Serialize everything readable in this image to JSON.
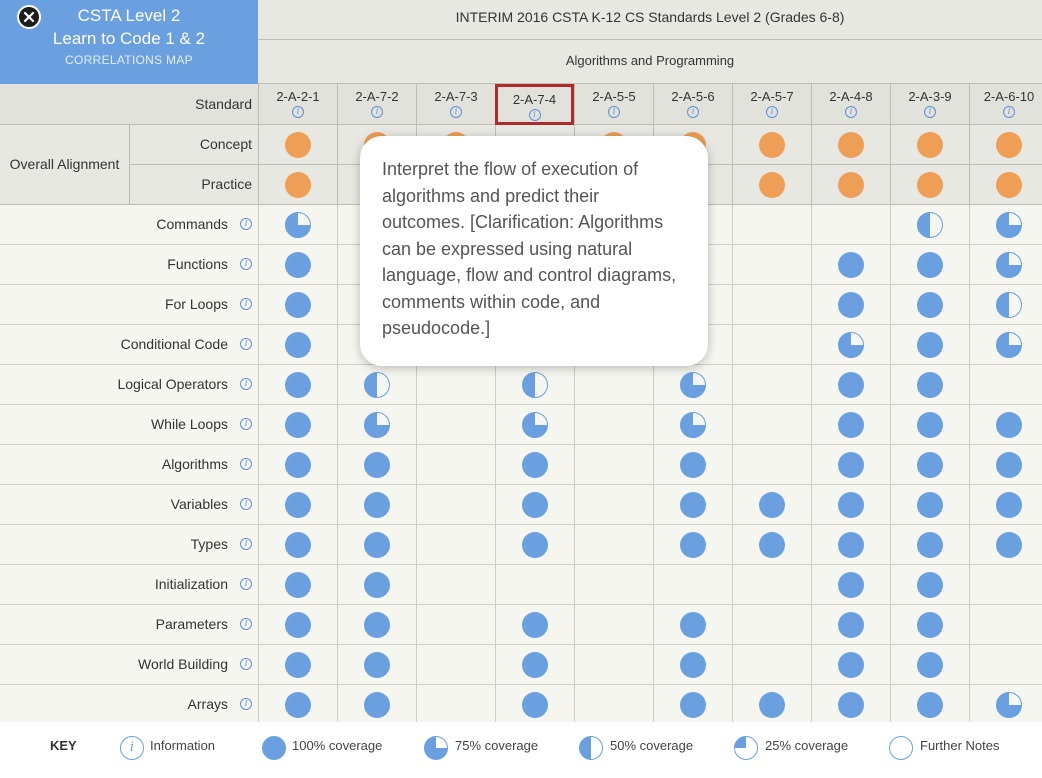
{
  "brand": {
    "title_line1": "CSTA Level 2",
    "title_line2": "Learn to Code 1 & 2",
    "subtitle": "CORRELATIONS MAP"
  },
  "header": {
    "title": "INTERIM 2016 CSTA K-12 CS Standards Level 2 (Grades 6-8)",
    "group": "Algorithms and Programming"
  },
  "standard_label": "Standard",
  "standards": [
    "2-A-2-1",
    "2-A-7-2",
    "2-A-7-3",
    "2-A-7-4",
    "2-A-5-5",
    "2-A-5-6",
    "2-A-5-7",
    "2-A-4-8",
    "2-A-3-9",
    "2-A-6-10"
  ],
  "selected_standard": "2-A-7-4",
  "overall_alignment": {
    "label": "Overall Alignment",
    "rows": [
      {
        "label": "Concept",
        "values": [
          1,
          1,
          1,
          null,
          1,
          1,
          1,
          1,
          1,
          1
        ]
      },
      {
        "label": "Practice",
        "values": [
          1,
          null,
          null,
          null,
          null,
          null,
          1,
          1,
          1,
          1
        ]
      }
    ]
  },
  "coverage_rows": [
    {
      "label": "Commands",
      "values": [
        0.75,
        null,
        null,
        null,
        null,
        null,
        null,
        null,
        0.5,
        0.75
      ]
    },
    {
      "label": "Functions",
      "values": [
        1,
        null,
        null,
        null,
        null,
        null,
        null,
        1,
        1,
        0.75
      ]
    },
    {
      "label": "For Loops",
      "values": [
        1,
        null,
        null,
        null,
        null,
        null,
        null,
        1,
        1,
        0.5
      ]
    },
    {
      "label": "Conditional Code",
      "values": [
        1,
        null,
        null,
        null,
        null,
        null,
        null,
        0.75,
        1,
        0.75
      ]
    },
    {
      "label": "Logical Operators",
      "values": [
        1,
        0.5,
        null,
        0.5,
        null,
        0.75,
        null,
        1,
        1,
        null
      ]
    },
    {
      "label": "While Loops",
      "values": [
        1,
        0.75,
        null,
        0.75,
        null,
        0.75,
        null,
        1,
        1,
        1
      ]
    },
    {
      "label": "Algorithms",
      "values": [
        1,
        1,
        null,
        1,
        null,
        1,
        null,
        1,
        1,
        1
      ]
    },
    {
      "label": "Variables",
      "values": [
        1,
        1,
        null,
        1,
        null,
        1,
        1,
        1,
        1,
        1
      ]
    },
    {
      "label": "Types",
      "values": [
        1,
        1,
        null,
        1,
        null,
        1,
        1,
        1,
        1,
        1
      ]
    },
    {
      "label": "Initialization",
      "values": [
        1,
        1,
        null,
        null,
        null,
        null,
        null,
        1,
        1,
        null
      ]
    },
    {
      "label": "Parameters",
      "values": [
        1,
        1,
        null,
        1,
        null,
        1,
        null,
        1,
        1,
        null
      ]
    },
    {
      "label": "World Building",
      "values": [
        1,
        1,
        null,
        1,
        null,
        1,
        null,
        1,
        1,
        null
      ]
    },
    {
      "label": "Arrays",
      "values": [
        1,
        1,
        null,
        1,
        null,
        1,
        1,
        1,
        1,
        0.75
      ]
    }
  ],
  "tooltip": {
    "text": "Interpret the flow of execution of algorithms and predict their outcomes. [Clarification: Algorithms can be expressed using natural language, flow and control diagrams, comments within code, and pseudocode.]"
  },
  "key": {
    "title": "KEY",
    "items": [
      {
        "icon": "info-icon",
        "label": "Information"
      },
      {
        "icon": "full-coverage-icon",
        "label": "100% coverage"
      },
      {
        "icon": "three-quarter-coverage-icon",
        "label": "75% coverage"
      },
      {
        "icon": "half-coverage-icon",
        "label": "50% coverage"
      },
      {
        "icon": "quarter-coverage-icon",
        "label": "25% coverage"
      },
      {
        "icon": "further-notes-icon",
        "label": "Further Notes"
      }
    ]
  },
  "colors": {
    "brand_blue": "#6a9fe0",
    "alignment_orange": "#ee9e55",
    "selection_red": "#b02a2a"
  }
}
